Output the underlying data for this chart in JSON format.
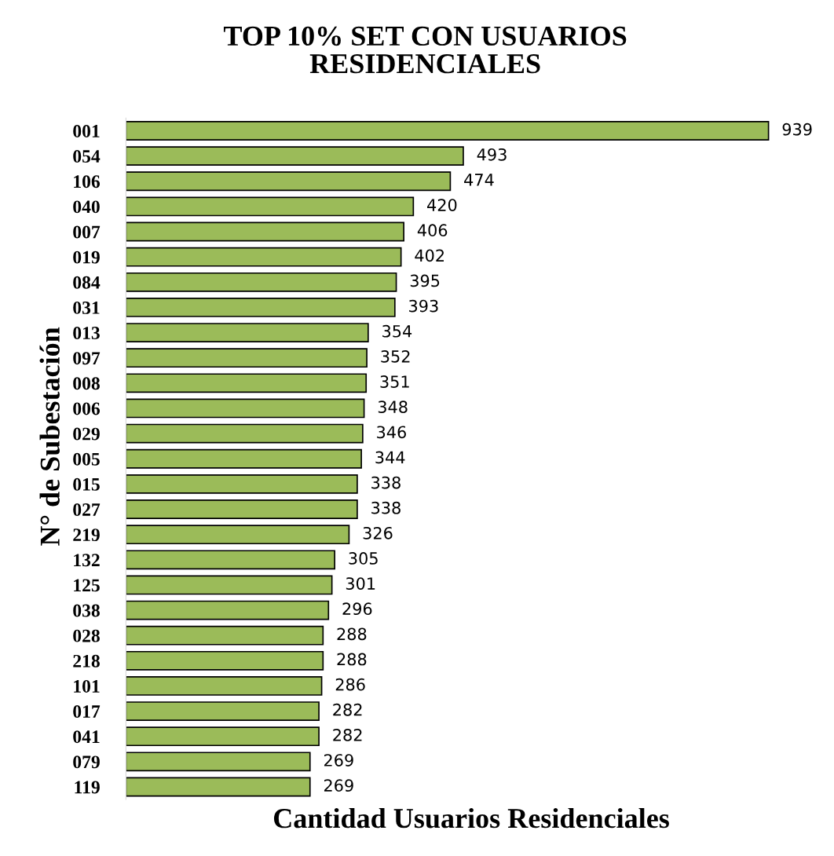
{
  "chart_data": {
    "type": "bar",
    "orientation": "horizontal",
    "title": "TOP 10% SET CON USUARIOS\nRESIDENCIALES",
    "xlabel": "Cantidad Usuarios Residenciales",
    "ylabel": "N° de Subestación",
    "categories": [
      "001",
      "054",
      "106",
      "040",
      "007",
      "019",
      "084",
      "031",
      "013",
      "097",
      "008",
      "006",
      "029",
      "005",
      "015",
      "027",
      "219",
      "132",
      "125",
      "038",
      "028",
      "218",
      "101",
      "017",
      "041",
      "079",
      "119"
    ],
    "values": [
      939,
      493,
      474,
      420,
      406,
      402,
      395,
      393,
      354,
      352,
      351,
      348,
      346,
      344,
      338,
      338,
      326,
      305,
      301,
      296,
      288,
      288,
      286,
      282,
      282,
      269,
      269
    ],
    "color": "#9bbb59",
    "data_labels": true,
    "grid": false,
    "tick_labels": "y"
  }
}
